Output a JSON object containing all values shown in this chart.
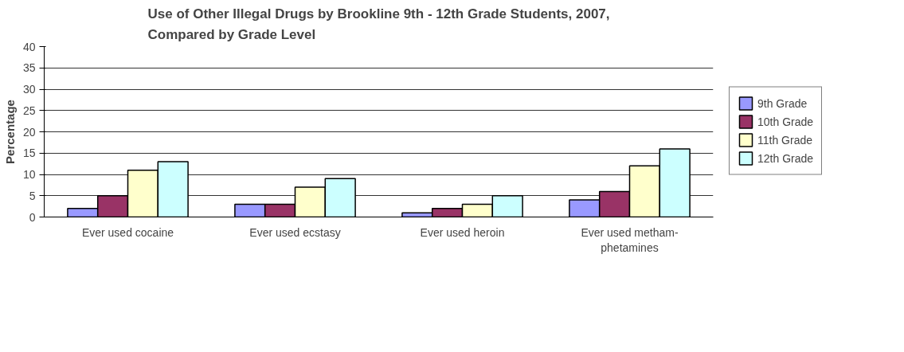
{
  "chart_data": {
    "type": "bar",
    "title": "Use of Other Illegal Drugs by Brookline 9th - 12th Grade Students, 2007,\nCompared by Grade Level",
    "ylabel": "Percentage",
    "categories": [
      "Ever used cocaine",
      "Ever used ecstasy",
      "Ever used heroin",
      "Ever used metham-\nphetamines"
    ],
    "series": [
      {
        "name": "9th Grade",
        "color": "#9999ff",
        "values": [
          2,
          3,
          1,
          4
        ]
      },
      {
        "name": "10th Grade",
        "color": "#993366",
        "values": [
          5,
          3,
          2,
          6
        ]
      },
      {
        "name": "11th Grade",
        "color": "#ffffcc",
        "values": [
          11,
          7,
          3,
          12
        ]
      },
      {
        "name": "12th Grade",
        "color": "#ccffff",
        "values": [
          13,
          9,
          5,
          16
        ]
      }
    ],
    "ylim": [
      0,
      40
    ],
    "yticks": [
      0,
      5,
      10,
      15,
      20,
      25,
      30,
      35,
      40
    ],
    "grid": "y",
    "legend": "right"
  }
}
